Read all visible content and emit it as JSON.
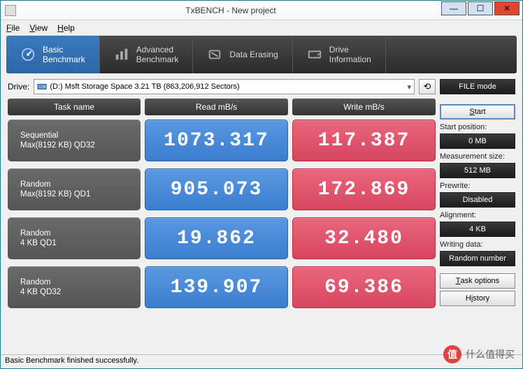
{
  "window": {
    "title": "TxBENCH - New project"
  },
  "menu": {
    "file": "File",
    "view": "View",
    "help": "Help"
  },
  "nav": {
    "items": [
      {
        "l1": "Basic",
        "l2": "Benchmark",
        "active": true
      },
      {
        "l1": "Advanced",
        "l2": "Benchmark",
        "active": false
      },
      {
        "l1": "Data Erasing",
        "l2": "",
        "active": false
      },
      {
        "l1": "Drive",
        "l2": "Information",
        "active": false
      }
    ]
  },
  "drive": {
    "label": "Drive:",
    "selected": "(D:) Msft Storage Space  3.21 TB (863,206,912 Sectors)"
  },
  "headers": {
    "task": "Task name",
    "read": "Read mB/s",
    "write": "Write mB/s"
  },
  "rows": [
    {
      "name_l1": "Sequential",
      "name_l2": "Max(8192 KB) QD32",
      "read": "1073.317",
      "write": "117.387"
    },
    {
      "name_l1": "Random",
      "name_l2": "Max(8192 KB) QD1",
      "read": "905.073",
      "write": "172.869"
    },
    {
      "name_l1": "Random",
      "name_l2": "4 KB QD1",
      "read": "19.862",
      "write": "32.480"
    },
    {
      "name_l1": "Random",
      "name_l2": "4 KB QD32",
      "read": "139.907",
      "write": "69.386"
    }
  ],
  "side": {
    "file_mode": "FILE mode",
    "start": "Start",
    "start_pos_lbl": "Start position:",
    "start_pos": "0 MB",
    "meas_lbl": "Measurement size:",
    "meas": "512 MB",
    "prewrite_lbl": "Prewrite:",
    "prewrite": "Disabled",
    "align_lbl": "Alignment:",
    "align": "4 KB",
    "wdata_lbl": "Writing data:",
    "wdata": "Random number",
    "task_opts": "Task options",
    "history": "History"
  },
  "status": "Basic Benchmark finished successfully.",
  "colors": {
    "read_bg": "#3a7ed0",
    "write_bg": "#d84560",
    "nav_active": "#2d66a5",
    "dark_btn": "#1b1b1b"
  },
  "watermark": "什么值得买"
}
